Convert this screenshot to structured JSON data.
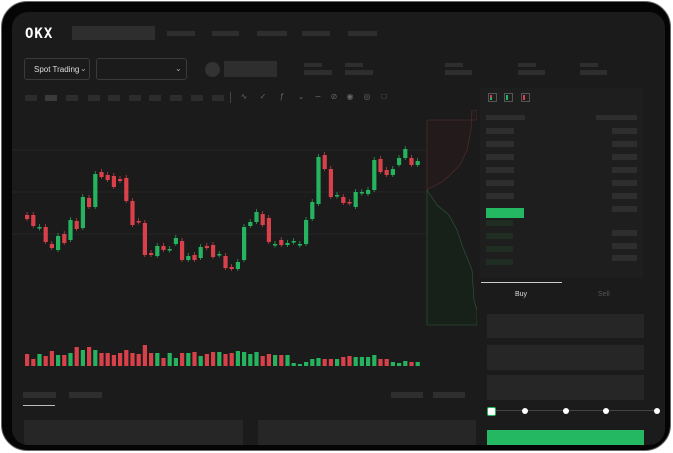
{
  "header": {
    "logo": "OKX",
    "nav_items": 5
  },
  "toolbar": {
    "spot_trading_label": "Spot Trading",
    "chevron": "chevron-down-icon"
  },
  "trade_panel": {
    "buy_tab": "Buy",
    "sell_tab": "Sell",
    "active_tab": "Buy",
    "leverage_slider_percent": 0
  },
  "colors": {
    "up": "#26b35f",
    "down": "#d9414a",
    "background": "#1b1b1b",
    "buy_button": "#25b862"
  },
  "chart_data": {
    "type": "candlestick",
    "title": "",
    "xlabel": "",
    "ylabel": "",
    "grid": true,
    "candles": [
      [
        97,
        93
      ],
      [
        97,
        86
      ],
      [
        85,
        85
      ],
      [
        85,
        70
      ],
      [
        68,
        64
      ],
      [
        62,
        76
      ],
      [
        78,
        69
      ],
      [
        72,
        92
      ],
      [
        91,
        83
      ],
      [
        84,
        115
      ],
      [
        114,
        105
      ],
      [
        105,
        138
      ],
      [
        140,
        135
      ],
      [
        137,
        132
      ],
      [
        136,
        125
      ],
      [
        133,
        131
      ],
      [
        134,
        111
      ],
      [
        111,
        87
      ],
      [
        91,
        90
      ],
      [
        89,
        57
      ],
      [
        59,
        57
      ],
      [
        56,
        66
      ],
      [
        66,
        62
      ],
      [
        62,
        63
      ],
      [
        68,
        74
      ],
      [
        71,
        52
      ],
      [
        52,
        56
      ],
      [
        57,
        52
      ],
      [
        54,
        65
      ],
      [
        66,
        64
      ],
      [
        67,
        55
      ],
      [
        58,
        58
      ],
      [
        56,
        44
      ],
      [
        45,
        43
      ],
      [
        43,
        50
      ],
      [
        52,
        85
      ],
      [
        86,
        90
      ],
      [
        90,
        100
      ],
      [
        98,
        87
      ],
      [
        94,
        70
      ],
      [
        68,
        68
      ],
      [
        72,
        67
      ],
      [
        67,
        69
      ],
      [
        71,
        71
      ],
      [
        68,
        68
      ],
      [
        68,
        92
      ],
      [
        93,
        110
      ],
      [
        108,
        155
      ],
      [
        157,
        143
      ],
      [
        143,
        115
      ],
      [
        117,
        117
      ],
      [
        115,
        109
      ],
      [
        110,
        109
      ],
      [
        105,
        120
      ],
      [
        120,
        120
      ],
      [
        118,
        122
      ],
      [
        122,
        152
      ],
      [
        153,
        140
      ],
      [
        142,
        137
      ],
      [
        137,
        143
      ],
      [
        147,
        154
      ],
      [
        154,
        163
      ],
      [
        154,
        147
      ],
      [
        147,
        151
      ]
    ],
    "volume": [
      12,
      7,
      12,
      10,
      15,
      11,
      11,
      13,
      19,
      16,
      19,
      16,
      13,
      13,
      11,
      13,
      16,
      13,
      12,
      21,
      13,
      13,
      8,
      13,
      8,
      13,
      13,
      14,
      10,
      12,
      14,
      14,
      12,
      13,
      15,
      14,
      12,
      14,
      10,
      12,
      11,
      11,
      11,
      3,
      2,
      4,
      7,
      8,
      7,
      7,
      7,
      9,
      10,
      9,
      9,
      9,
      11,
      7,
      7,
      4,
      3,
      5,
      4,
      4
    ]
  }
}
